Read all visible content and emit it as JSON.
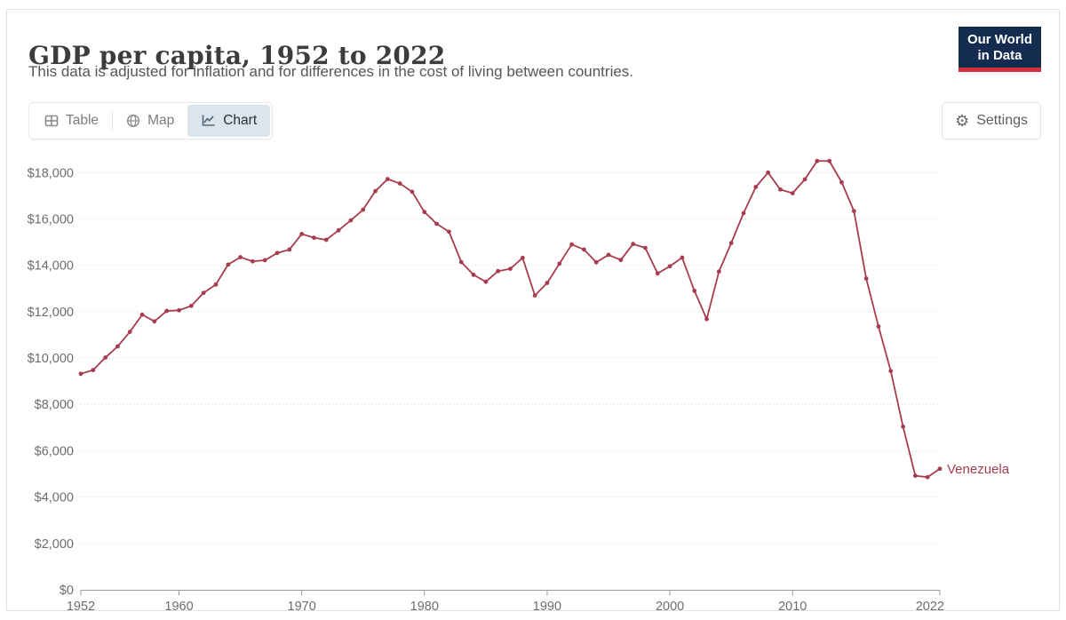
{
  "header": {
    "title": "GDP per capita, 1952 to 2022",
    "subtitle": "This data is adjusted for inflation and for differences in the cost of living between countries.",
    "logo_line1": "Our World",
    "logo_line2": "in Data"
  },
  "toolbar": {
    "tabs": [
      {
        "label": "Table",
        "icon": "table-icon",
        "active": false
      },
      {
        "label": "Map",
        "icon": "globe-icon",
        "active": false
      },
      {
        "label": "Chart",
        "icon": "line-chart-icon",
        "active": true
      }
    ],
    "settings_label": "Settings",
    "settings_icon": "gear-icon"
  },
  "colors": {
    "line": "#a63c4e",
    "logo_bg": "#132c4f",
    "logo_stripe": "#cf303e",
    "active_tab_bg": "#dbe5ed",
    "gridline": "#dadada",
    "axis": "#9a9a9a",
    "tick_label": "#6d6d6d"
  },
  "chart_data": {
    "type": "line",
    "title": "GDP per capita, 1952 to 2022",
    "xlabel": "",
    "ylabel": "",
    "ylim": [
      0,
      18000
    ],
    "yticks": [
      0,
      2000,
      4000,
      6000,
      8000,
      10000,
      12000,
      14000,
      16000,
      18000
    ],
    "ytick_prefix": "$",
    "xticks": [
      1952,
      1960,
      1970,
      1980,
      1990,
      2000,
      2010,
      2022
    ],
    "grid": "horizontal-dotted",
    "legend_position": "end-of-line-label",
    "x": [
      1952,
      1953,
      1954,
      1955,
      1956,
      1957,
      1958,
      1959,
      1960,
      1961,
      1962,
      1963,
      1964,
      1965,
      1966,
      1967,
      1968,
      1969,
      1970,
      1971,
      1972,
      1973,
      1974,
      1975,
      1976,
      1977,
      1978,
      1979,
      1980,
      1981,
      1982,
      1983,
      1984,
      1985,
      1986,
      1987,
      1988,
      1989,
      1990,
      1991,
      1992,
      1993,
      1994,
      1995,
      1996,
      1997,
      1998,
      1999,
      2000,
      2001,
      2002,
      2003,
      2004,
      2005,
      2006,
      2007,
      2008,
      2009,
      2010,
      2011,
      2012,
      2013,
      2014,
      2015,
      2016,
      2017,
      2018,
      2019,
      2020,
      2021,
      2022
    ],
    "series": [
      {
        "name": "Venezuela",
        "color": "#a63c4e",
        "values": [
          9320,
          9480,
          10020,
          10500,
          11130,
          11870,
          11580,
          12030,
          12060,
          12250,
          12810,
          13170,
          14030,
          14350,
          14170,
          14220,
          14530,
          14680,
          15350,
          15190,
          15100,
          15510,
          15940,
          16400,
          17200,
          17720,
          17530,
          17170,
          16300,
          15790,
          15450,
          14140,
          13590,
          13290,
          13750,
          13850,
          14320,
          12700,
          13240,
          14070,
          14900,
          14680,
          14130,
          14450,
          14230,
          14920,
          14750,
          13650,
          13960,
          14330,
          12900,
          11680,
          13730,
          14960,
          16250,
          17380,
          18000,
          17270,
          17110,
          17710,
          18500,
          18500,
          17580,
          16340,
          13430,
          11360,
          9440,
          7040,
          4920,
          4860,
          5220
        ]
      }
    ]
  }
}
